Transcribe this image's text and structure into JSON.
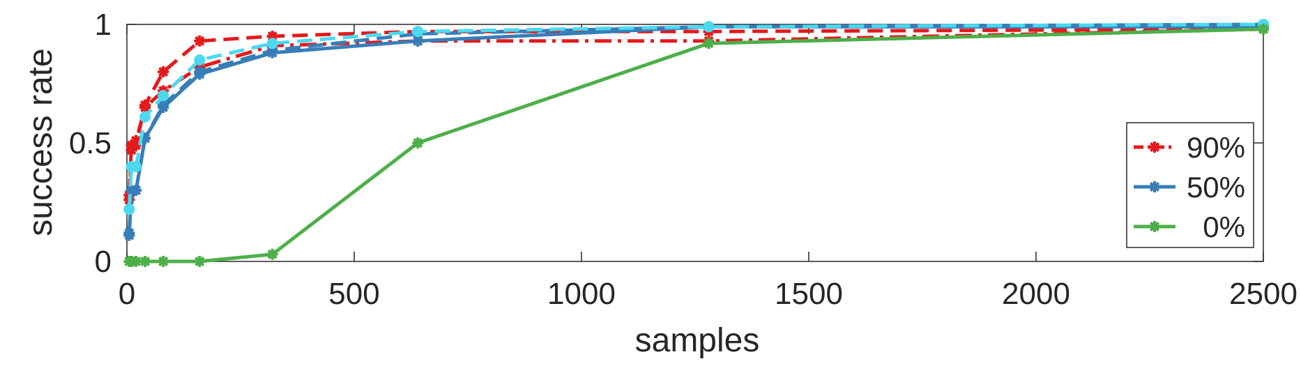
{
  "chart_data": {
    "type": "line",
    "xlabel": "samples",
    "ylabel": "success rate",
    "xlim": [
      0,
      2500
    ],
    "ylim": [
      0,
      1
    ],
    "xticks": [
      0,
      500,
      1000,
      1500,
      2000,
      2500
    ],
    "yticks": [
      0,
      0.5,
      1
    ],
    "xtick_labels": [
      "0",
      "500",
      "1000",
      "1500",
      "2000",
      "2500"
    ],
    "ytick_labels": [
      "0",
      "0.5",
      "1"
    ],
    "grid": false,
    "legend_position": "right",
    "series": [
      {
        "name": "90%",
        "color": "#e41a1c",
        "style": "dashdot",
        "marker": "star",
        "x": [
          5,
          10,
          20,
          40,
          80,
          160,
          320,
          640,
          1280,
          2500
        ],
        "y": [
          0.28,
          0.49,
          0.51,
          0.65,
          0.72,
          0.82,
          0.91,
          0.93,
          0.93,
          0.98
        ]
      },
      {
        "name": "",
        "color": "#e41a1c",
        "style": "dashed",
        "marker": "star",
        "x": [
          5,
          10,
          20,
          40,
          80,
          160,
          320,
          640,
          1280,
          2500
        ],
        "y": [
          0.26,
          0.47,
          0.49,
          0.66,
          0.8,
          0.93,
          0.95,
          0.97,
          0.97,
          0.98
        ]
      },
      {
        "name": "50%",
        "color": "#377eb8",
        "style": "solid",
        "marker": "star",
        "x": [
          5,
          10,
          20,
          40,
          80,
          160,
          320,
          640,
          1280,
          2500
        ],
        "y": [
          0.11,
          0.3,
          0.3,
          0.52,
          0.65,
          0.79,
          0.88,
          0.93,
          0.99,
          0.99
        ]
      },
      {
        "name": "",
        "color": "#377eb8",
        "style": "dashed",
        "marker": "star",
        "x": [
          5,
          10,
          20,
          40,
          80,
          160,
          320,
          640,
          1280,
          2500
        ],
        "y": [
          0.12,
          0.3,
          0.3,
          0.52,
          0.66,
          0.8,
          0.89,
          0.96,
          0.99,
          1.0
        ]
      },
      {
        "name": "",
        "color": "#4cd9f0",
        "style": "dashed",
        "marker": "circle",
        "x": [
          5,
          10,
          20,
          40,
          80,
          160,
          320,
          640,
          1280,
          2500
        ],
        "y": [
          0.22,
          0.4,
          0.4,
          0.61,
          0.7,
          0.85,
          0.92,
          0.97,
          0.99,
          1.0
        ]
      },
      {
        "name": "0%",
        "color": "#4daf4a",
        "style": "solid",
        "marker": "star",
        "x": [
          5,
          10,
          20,
          40,
          80,
          160,
          320,
          640,
          1280,
          2500
        ],
        "y": [
          0,
          0,
          0,
          0,
          0,
          0,
          0.03,
          0.5,
          0.92,
          0.98
        ]
      }
    ]
  }
}
